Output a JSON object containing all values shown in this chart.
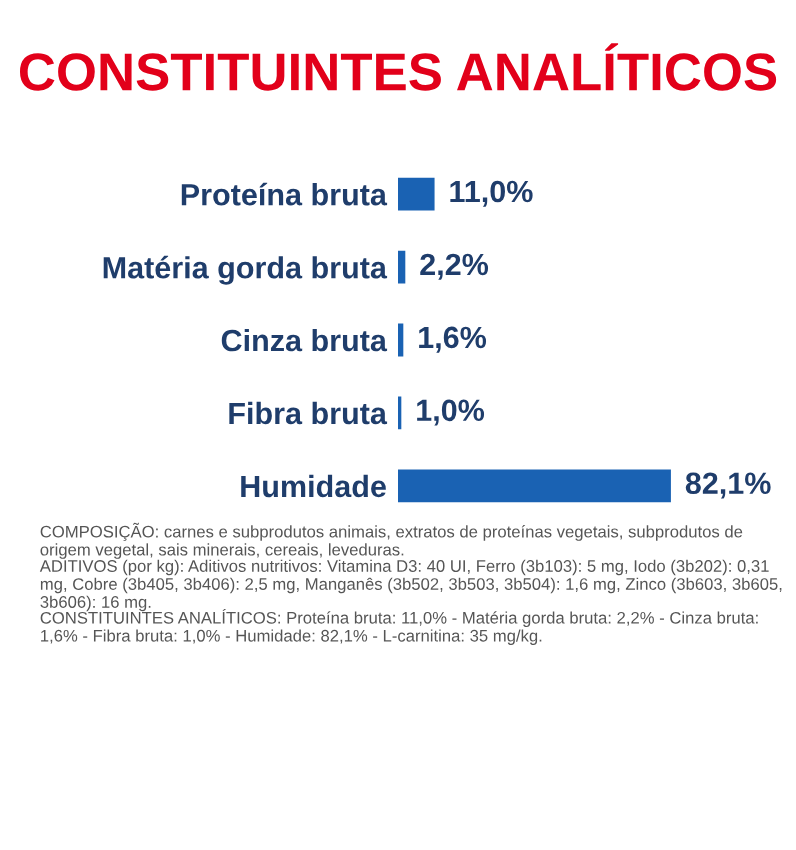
{
  "chart_data": {
    "type": "bar",
    "orientation": "horizontal",
    "title": "CONSTITUINTES ANALÍTICOS",
    "categories": [
      "Proteína bruta",
      "Matéria gorda bruta",
      "Cinza bruta",
      "Fibra bruta",
      "Humidade"
    ],
    "values": [
      11.0,
      2.2,
      1.6,
      1.0,
      82.1
    ],
    "value_labels": [
      "11,0%",
      "2,2%",
      "1,6%",
      "1,0%",
      "82,1%"
    ],
    "color": "#1a62b3",
    "annotations": [
      "COMPOSIÇÃO: carnes e subprodutos animais, extratos de proteínas vegetais, subprodutos de origem vegetal, sais minerais, cereais, leveduras.",
      "ADITIVOS (por kg): Aditivos nutritivos: Vitamina D3: 40 UI, Ferro (3b103): 5 mg, Iodo (3b202): 0,31 mg, Cobre (3b405, 3b406): 2,5 mg, Manganês (3b502, 3b503, 3b504): 1,6 mg, Zinco (3b603, 3b605, 3b606): 16 mg.",
      "CONSTITUINTES ANALÍTICOS: Proteína bruta: 11,0% - Matéria gorda bruta: 2,2% - Cinza bruta: 1,6% - Fibra bruta: 1,0% - Humidade: 82,1% - L-carnitina: 35 mg/kg."
    ]
  }
}
